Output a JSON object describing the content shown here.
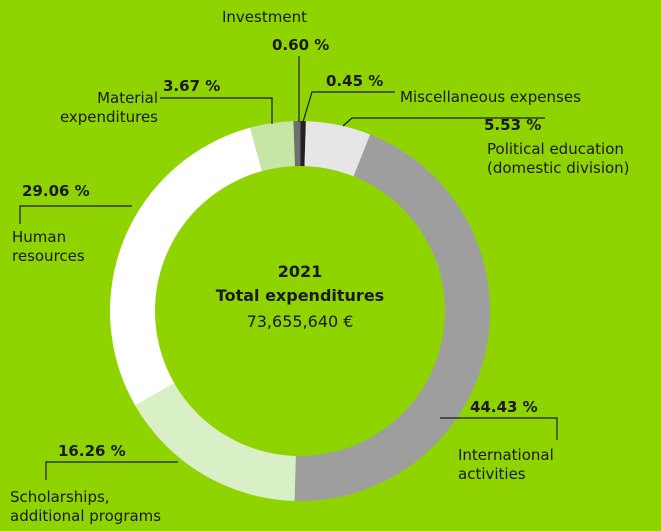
{
  "chart_data": {
    "type": "donut",
    "center_title": "2021",
    "center_subtitle": "Total expenditures",
    "center_value": "73,655,640 €",
    "categories": [
      "Investment",
      "Miscellaneous expenses",
      "Political education (domestic division)",
      "International activities",
      "Scholarships, additional programs",
      "Human resources",
      "Material expenditures"
    ],
    "values": [
      0.6,
      0.45,
      5.53,
      44.43,
      16.26,
      29.06,
      3.67
    ],
    "value_labels": [
      "0.60 %",
      "0.45 %",
      "5.53 %",
      "44.43 %",
      "16.26 %",
      "29.06 %",
      "3.67 %"
    ],
    "colors": [
      "#6f6f6f",
      "#222222",
      "#e6e6e6",
      "#9e9e9e",
      "#d9efc6",
      "#ffffff",
      "#c6e6a8"
    ]
  }
}
